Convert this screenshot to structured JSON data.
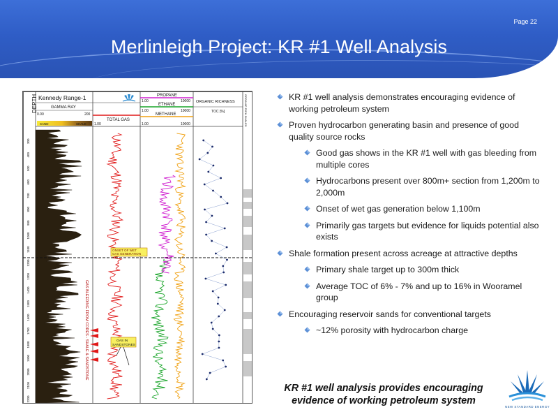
{
  "header": {
    "page_number": "Page 22",
    "title": "Merlinleigh Project: KR #1 Well Analysis"
  },
  "well_log": {
    "depth_label": "DEPTH",
    "well_name": "Kennedy Range-1",
    "gamma_ray_label": "GAMMA RAY",
    "gamma_min": "0.00",
    "gamma_max": "200",
    "sand_label": "SAND",
    "shale_label": "SHALE",
    "total_gas_label": "TOTAL GAS",
    "total_gas_min": "1.00",
    "propane_label": "PROPANE",
    "ethane_label": "ETHANE",
    "methane_label": "METHANE",
    "scale_1": "1.00",
    "scale_10000": "10000",
    "organic_richness_label": "ORGANIC RICHNESS",
    "toc_label": "TOC [%]",
    "organic_rich_shales_label": "ORGANIC RICH SHALES",
    "onset_label_1": "ONSET OF WET",
    "onset_label_2": "GAS GENERATION",
    "gas_in_label_1": "GAS IN",
    "gas_in_label_2": "SANDSTONES",
    "vertical_note": "GAS BLEEDING FROM CORES - SHALE & SANDSTONE",
    "depth_ticks": [
      "300",
      "400",
      "500",
      "600",
      "700",
      "800",
      "900",
      "1000",
      "1100",
      "1200",
      "1300",
      "1400",
      "1500",
      "1600",
      "1700",
      "1800",
      "1900",
      "2000",
      "2100",
      "2200"
    ],
    "logo_small": "NEW STANDARD ENERGY"
  },
  "bullets": [
    {
      "level": 1,
      "text": "KR #1 well analysis demonstrates encouraging evidence of working petroleum system"
    },
    {
      "level": 1,
      "text": "Proven hydrocarbon generating basin and presence of good quality source rocks"
    },
    {
      "level": 2,
      "text": "Good gas shows in the KR #1 well with gas bleeding from multiple cores"
    },
    {
      "level": 2,
      "text": "Hydrocarbons present over 800m+ section from 1,200m to 2,000m"
    },
    {
      "level": 2,
      "text": "Onset of wet gas generation below 1,100m"
    },
    {
      "level": 2,
      "text": "Primarily gas targets but evidence for liquids potential also exists"
    },
    {
      "level": 1,
      "text": "Shale formation present across acreage at attractive depths"
    },
    {
      "level": 2,
      "text": "Primary shale target up to 300m thick"
    },
    {
      "level": 2,
      "text": "Average TOC of 6% - 7% and up to 16% in Wooramel group"
    },
    {
      "level": 1,
      "text": "Encouraging reservoir sands for conventional targets"
    },
    {
      "level": 2,
      "text": "~12% porosity with hydrocarbon charge"
    }
  ],
  "conclusion": {
    "line1": "KR #1 well analysis provides encouraging",
    "line2": "evidence of working petroleum system"
  },
  "logo": {
    "text": "NEW STANDARD ENERGY"
  },
  "colors": {
    "header_blue": "#2f5dc6",
    "bullet_blue": "#5b8fd6",
    "logo_blue": "#1a5aa0",
    "gas_red": "#e01818",
    "ethane_green": "#1aa52a",
    "methane_orange": "#f0a010",
    "propane_magenta": "#d020d0",
    "toc_navy": "#1a2a6a"
  }
}
